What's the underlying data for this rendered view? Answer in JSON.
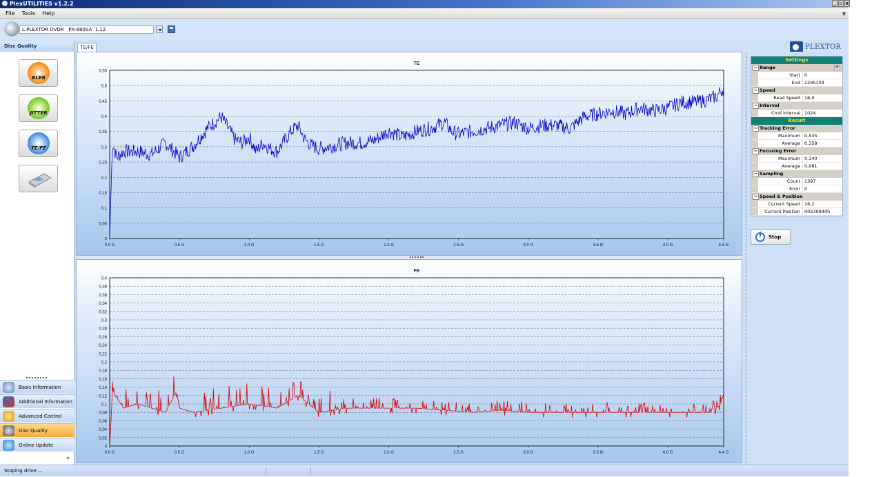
{
  "window": {
    "title": "PlexUTILITIES v1.2.2",
    "controls": [
      "_",
      "▫",
      "x"
    ]
  },
  "menu": [
    "File",
    "Tools",
    "Help"
  ],
  "toolbar": {
    "drive": "L:PLEXTOR DVDR   PX-880SA  1.12",
    "logo": "PLEXTOR"
  },
  "leftpanel": {
    "header": "Disc Quality",
    "quality_buttons": [
      "BLER",
      "JITTER",
      "TE/FE",
      ""
    ],
    "nav": [
      "Basic Information",
      "Additional Information",
      "Advanced Control",
      "Disc Quality",
      "Online Update"
    ],
    "active_nav": "Disc Quality"
  },
  "tab": "TE/FE",
  "settings": {
    "header": "Settings",
    "range": {
      "label": "Range",
      "start_label": "Start",
      "start": "0",
      "end_label": "End",
      "end": "2295104"
    },
    "speed": {
      "label": "Speed",
      "read_speed_label": "Read Speed",
      "read_speed": "16,0"
    },
    "interval": {
      "label": "Interval",
      "cmd_interval_label": "Cmd Interval",
      "cmd_interval": "1024"
    }
  },
  "result": {
    "header": "Result",
    "tracking_error": {
      "label": "Tracking Error",
      "maximum_label": "Maximum",
      "maximum": "0,535",
      "average_label": "Average",
      "average": "0,358"
    },
    "focusing_error": {
      "label": "Focusing Error",
      "maximum_label": "Maximum",
      "maximum": "0,140",
      "average_label": "Average",
      "average": "0,081"
    },
    "sampling": {
      "label": "Sampling",
      "count_label": "Count",
      "count": "1397",
      "error_label": "Error",
      "error": "0"
    },
    "speed_position": {
      "label": "Speed & Position",
      "current_speed_label": "Current Speed",
      "current_speed": "16,2",
      "current_position_label": "Current Position",
      "current_position": "00230940h"
    }
  },
  "stop_button": "Stop",
  "status": "Stoping drive ...",
  "colors": {
    "te_line": "#0000c8",
    "fe_line": "#d40000",
    "accent": "#118074",
    "active_nav": "#f6ad3a"
  },
  "chart_data": [
    {
      "type": "line",
      "title": "TE",
      "xlim": [
        0,
        4.4
      ],
      "ylim": [
        0,
        0.58
      ],
      "x_ticks": [
        "0.0 G",
        "0.5 G",
        "1.0 G",
        "1.5 G",
        "2.0 G",
        "2.5 G",
        "3.0 G",
        "3.5 G",
        "4.0 G",
        "4.4 G"
      ],
      "y_ticks": [
        "0",
        "0,05",
        "0,1",
        "0,15",
        "0,2",
        "0,25",
        "0,3",
        "0,35",
        "0,4",
        "0,45",
        "0,5",
        "0,55"
      ],
      "grid": true,
      "series": [
        {
          "x": [
            0,
            0.02,
            0.05,
            0.1,
            0.2,
            0.3,
            0.4,
            0.5,
            0.55,
            0.6,
            0.7,
            0.75,
            0.8,
            0.85,
            0.9,
            0.95,
            1.0,
            1.05,
            1.1,
            1.15,
            1.2,
            1.3,
            1.35,
            1.4,
            1.45,
            1.5,
            1.6,
            1.7,
            1.8,
            1.9,
            2.0,
            2.1,
            2.2,
            2.3,
            2.4,
            2.45,
            2.5,
            2.6,
            2.7,
            2.8,
            2.9,
            3.0,
            3.1,
            3.2,
            3.3,
            3.4,
            3.5,
            3.6,
            3.7,
            3.8,
            3.9,
            4.0,
            4.1,
            4.2,
            4.3,
            4.35,
            4.4
          ],
          "y": [
            0.01,
            0.33,
            0.28,
            0.3,
            0.3,
            0.29,
            0.33,
            0.28,
            0.3,
            0.32,
            0.38,
            0.4,
            0.42,
            0.38,
            0.34,
            0.33,
            0.35,
            0.3,
            0.33,
            0.31,
            0.3,
            0.37,
            0.39,
            0.34,
            0.32,
            0.31,
            0.32,
            0.33,
            0.33,
            0.34,
            0.37,
            0.35,
            0.37,
            0.38,
            0.4,
            0.37,
            0.36,
            0.37,
            0.38,
            0.39,
            0.4,
            0.38,
            0.39,
            0.39,
            0.38,
            0.42,
            0.43,
            0.44,
            0.43,
            0.45,
            0.44,
            0.45,
            0.47,
            0.47,
            0.48,
            0.49,
            0.52
          ]
        }
      ]
    },
    {
      "type": "line",
      "title": "FE",
      "xlim": [
        0,
        4.4
      ],
      "ylim": [
        0,
        0.4
      ],
      "x_ticks": [
        "0.0 G",
        "0.5 G",
        "1.0 G",
        "1.5 G",
        "2.0 G",
        "2.5 G",
        "3.0 G",
        "3.5 G",
        "4.0 G",
        "4.4 G"
      ],
      "y_ticks": [
        "0",
        "0,02",
        "0,04",
        "0,06",
        "0,08",
        "0,1",
        "0,12",
        "0,14",
        "0,16",
        "0,18",
        "0,2",
        "0,22",
        "0,24",
        "0,26",
        "0,28",
        "0,3",
        "0,32",
        "0,34",
        "0,36",
        "0,38",
        "0,4"
      ],
      "grid": true,
      "series": [
        {
          "x": [
            0,
            0.02,
            0.1,
            0.2,
            0.3,
            0.4,
            0.48,
            0.5,
            0.6,
            0.8,
            1.0,
            1.2,
            1.35,
            1.5,
            1.7,
            2.0,
            2.2,
            2.4,
            2.6,
            2.8,
            3.0,
            3.2,
            3.4,
            3.6,
            3.8,
            4.0,
            4.2,
            4.3,
            4.35,
            4.38,
            4.4
          ],
          "y": [
            0.0,
            0.13,
            0.09,
            0.1,
            0.09,
            0.08,
            0.13,
            0.09,
            0.08,
            0.09,
            0.1,
            0.09,
            0.12,
            0.08,
            0.09,
            0.09,
            0.09,
            0.085,
            0.08,
            0.085,
            0.08,
            0.08,
            0.08,
            0.08,
            0.08,
            0.08,
            0.08,
            0.08,
            0.09,
            0.1,
            0.125
          ]
        }
      ]
    }
  ]
}
